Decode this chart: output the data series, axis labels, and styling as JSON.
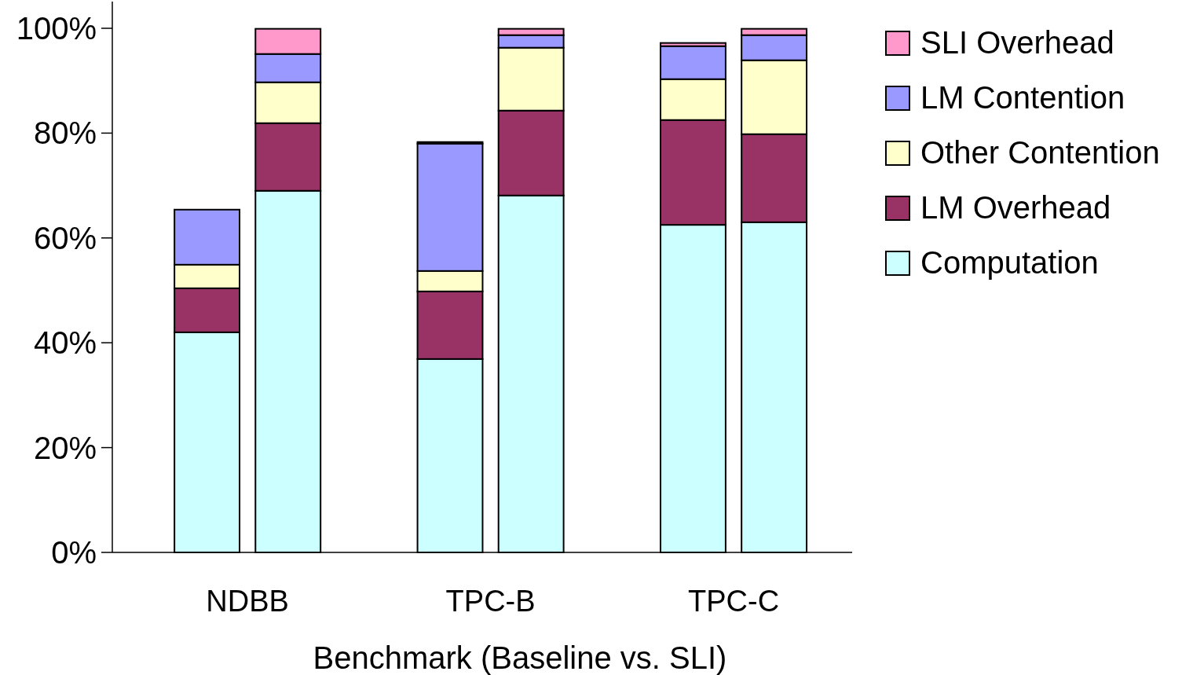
{
  "chart_data": {
    "type": "bar",
    "stacked": true,
    "xlabel": "Benchmark (Baseline vs. SLI)",
    "categories": [
      "NDBB",
      null,
      null,
      "TPC-B",
      null,
      null,
      "TPC-C",
      null
    ],
    "series": [
      {
        "name": "Computation",
        "color": "#ccffff",
        "values": [
          42.0,
          69.0,
          null,
          36.9,
          68.1,
          null,
          62.5,
          63.0
        ]
      },
      {
        "name": "LM Overhead",
        "color": "#993366",
        "values": [
          8.4,
          12.9,
          null,
          12.9,
          16.2,
          null,
          20.0,
          16.8
        ]
      },
      {
        "name": "Other Contention",
        "color": "#ffffcc",
        "values": [
          4.5,
          7.8,
          null,
          3.9,
          12.0,
          null,
          7.8,
          14.1
        ]
      },
      {
        "name": "LM Contention",
        "color": "#9999ff",
        "values": [
          10.5,
          5.4,
          null,
          24.3,
          2.4,
          null,
          6.3,
          4.8
        ]
      },
      {
        "name": "SLI Overhead",
        "color": "#ff99cc",
        "values": [
          0,
          4.8,
          null,
          0.3,
          1.2,
          null,
          0.6,
          1.2
        ]
      }
    ],
    "ylim": [
      0,
      100
    ],
    "yticks": [
      {
        "value": 0,
        "label": "0%"
      },
      {
        "value": 20,
        "label": "20%"
      },
      {
        "value": 40,
        "label": "40%"
      },
      {
        "value": 60,
        "label": "60%"
      },
      {
        "value": 80,
        "label": "80%"
      },
      {
        "value": 100,
        "label": "100%"
      }
    ],
    "legend": "right"
  }
}
